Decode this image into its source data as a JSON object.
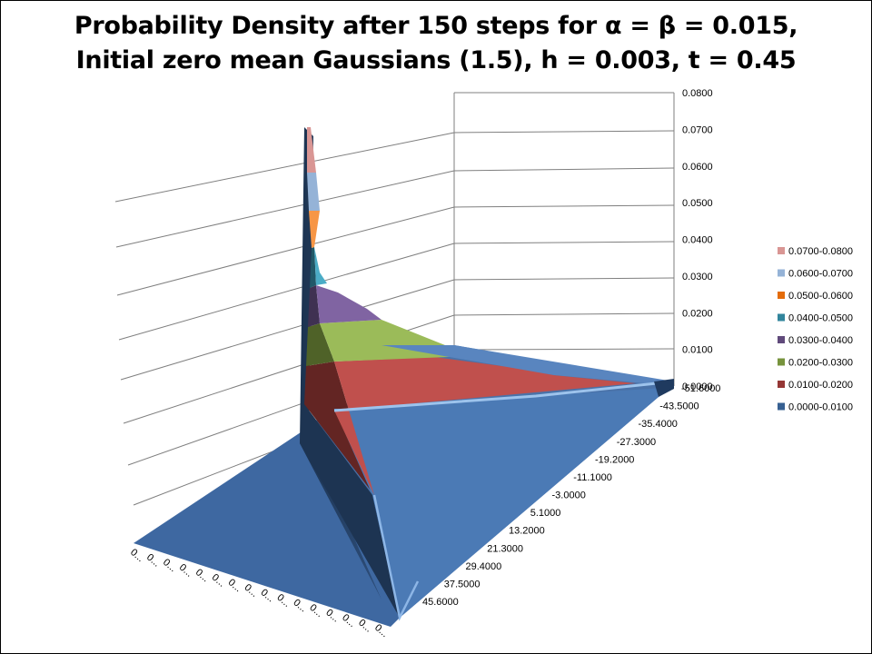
{
  "title": {
    "line1": "Probability Density after 150 steps for α = β = 0.015,",
    "line2": "Initial zero mean Gaussians (1.5), h = 0.003, t = 0.45"
  },
  "chart_data": {
    "type": "surface",
    "title": "Probability Density after 150 steps for α = β = 0.015, Initial zero mean Gaussians (1.5), h = 0.003, t = 0.45",
    "z_axis": {
      "ticks": [
        "0.0000",
        "0.0100",
        "0.0200",
        "0.0300",
        "0.0400",
        "0.0500",
        "0.0600",
        "0.0700",
        "0.0800"
      ],
      "range": [
        0,
        0.08
      ]
    },
    "y_axis": {
      "ticks": [
        "-51.6000",
        "-43.5000",
        "-35.4000",
        "-27.3000",
        "-19.2000",
        "-11.1000",
        "-3.0000",
        "5.1000",
        "13.2000",
        "21.3000",
        "29.4000",
        "37.5000",
        "45.6000"
      ]
    },
    "x_axis": {
      "tick_label": "0...",
      "tick_count": 16
    },
    "peak_value": 0.072,
    "legend": [
      {
        "label": "0.0700-0.0800",
        "color": "#d99694"
      },
      {
        "label": "0.0600-0.0700",
        "color": "#95b3d7"
      },
      {
        "label": "0.0500-0.0600",
        "color": "#e46c0a"
      },
      {
        "label": "0.0400-0.0500",
        "color": "#31859c"
      },
      {
        "label": "0.0300-0.0400",
        "color": "#604a7b"
      },
      {
        "label": "0.0200-0.0300",
        "color": "#77933c"
      },
      {
        "label": "0.0100-0.0200",
        "color": "#953735"
      },
      {
        "label": "0.0000-0.0100",
        "color": "#376092"
      }
    ],
    "legend_position": "right",
    "grid": true
  }
}
